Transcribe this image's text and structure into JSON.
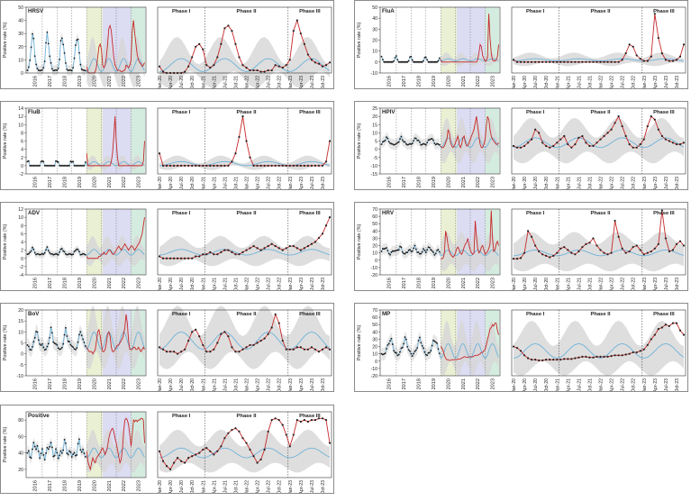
{
  "y_axis_label": "Positive rate (%)",
  "year_ticks": [
    "2016",
    "2017",
    "2018",
    "2019",
    "2020",
    "2021",
    "2022",
    "2023"
  ],
  "month_ticks": [
    "Jan-20",
    "Apr-20",
    "Jul-20",
    "Oct-20",
    "Jan-21",
    "Apr-21",
    "Jul-21",
    "Oct-21",
    "Jan-22",
    "Apr-22",
    "Jul-22",
    "Oct-22",
    "Jan-23",
    "Apr-23",
    "Jul-23",
    "Oct-23"
  ],
  "phase_labels": [
    "Phase I",
    "Phase II",
    "Phase III"
  ],
  "colors": {
    "observed_pre": "#1a1a1a",
    "observed_post": "#c62828",
    "predicted": "#6fb3d9",
    "band": "#d6d6d6",
    "phase1": "#eaf0d4",
    "phase2": "#dcdcf3",
    "phase3": "#d4ecdf"
  },
  "chart_data": [
    {
      "type": "line",
      "title": "HRSV",
      "yticks": [
        0,
        10,
        20,
        30,
        40,
        50
      ],
      "ylim": [
        0,
        50
      ],
      "pre_pattern": [
        2,
        4,
        10,
        22,
        28,
        24,
        14,
        7,
        3,
        2,
        2,
        2
      ],
      "obs_2020_2023": [
        5,
        1,
        0,
        0,
        0,
        0,
        0,
        1,
        5,
        12,
        20,
        22,
        18,
        6,
        4,
        6,
        12,
        22,
        34,
        36,
        32,
        22,
        12,
        6,
        4,
        2,
        2,
        2,
        1,
        1,
        2,
        2,
        6,
        5,
        4,
        6,
        10,
        32,
        40,
        30,
        22,
        14,
        10,
        8,
        7,
        5,
        6,
        8
      ],
      "pred_base": 6,
      "pred_amp": 5,
      "band_base": 11,
      "band_amp": 7
    },
    {
      "type": "line",
      "title": "FluA",
      "yticks": [
        -10,
        0,
        10,
        20,
        30,
        40,
        50
      ],
      "ylim": [
        -10,
        50
      ],
      "pre_pattern": [
        5,
        2,
        0,
        0,
        0,
        0,
        0,
        0,
        0,
        0,
        1,
        4
      ],
      "obs_2020_2023": [
        2,
        0,
        0,
        0,
        0,
        0,
        0,
        0,
        0,
        0,
        0,
        0,
        0,
        0,
        0,
        0,
        0,
        0,
        0,
        0,
        0,
        0,
        0,
        0,
        0,
        0,
        0,
        0,
        0,
        0,
        2,
        8,
        16,
        14,
        6,
        3,
        1,
        1,
        5,
        44,
        22,
        8,
        2,
        1,
        1,
        2,
        5,
        16
      ],
      "pred_base": 2,
      "pred_amp": 1,
      "band_base": 4,
      "band_amp": 2
    },
    {
      "type": "line",
      "title": "FluB",
      "yticks": [
        -2,
        0,
        2,
        4,
        6,
        8,
        10,
        12,
        14
      ],
      "ylim": [
        -2,
        14
      ],
      "pre_pattern": [
        1,
        1,
        0,
        0,
        0,
        0,
        0,
        0,
        0,
        0,
        0,
        1
      ],
      "obs_2020_2023": [
        3,
        0,
        0,
        0,
        0,
        0,
        0,
        0,
        0,
        0,
        0,
        0,
        0,
        0,
        0,
        0,
        0,
        0,
        0,
        0,
        1,
        3,
        7,
        12,
        6,
        2,
        0,
        0,
        0,
        0,
        0,
        0,
        0,
        0,
        0,
        0,
        0,
        0,
        0,
        0,
        0,
        0,
        0,
        0,
        0,
        0,
        1,
        6
      ],
      "pred_base": 0.5,
      "pred_amp": 0.5,
      "band_base": 1,
      "band_amp": 0.6
    },
    {
      "type": "line",
      "title": "HPIV",
      "yticks": [
        -15,
        -10,
        -5,
        0,
        5,
        10,
        15,
        20,
        25
      ],
      "ylim": [
        -15,
        25
      ],
      "pre_pattern": [
        3,
        4,
        5,
        6,
        7,
        6,
        5,
        4,
        3,
        3,
        3,
        3
      ],
      "obs_2020_2023": [
        2,
        1,
        1,
        2,
        4,
        6,
        12,
        10,
        4,
        2,
        1,
        2,
        4,
        6,
        8,
        3,
        1,
        3,
        7,
        8,
        4,
        2,
        2,
        4,
        6,
        8,
        10,
        12,
        16,
        20,
        14,
        8,
        3,
        1,
        1,
        3,
        6,
        14,
        20,
        18,
        12,
        8,
        6,
        5,
        4,
        3,
        3,
        4
      ],
      "pred_base": 4,
      "pred_amp": 3,
      "band_base": 9,
      "band_amp": 4
    },
    {
      "type": "line",
      "title": "ADV",
      "yticks": [
        -4,
        -2,
        0,
        2,
        4,
        6,
        8,
        10,
        12
      ],
      "ylim": [
        -4,
        12
      ],
      "pre_pattern": [
        1,
        1,
        1.5,
        2,
        2.5,
        2,
        1.5,
        1,
        1,
        1,
        1,
        1
      ],
      "obs_2020_2023": [
        0.5,
        0,
        0,
        0,
        0,
        0,
        0,
        0,
        0,
        0,
        0.5,
        0.5,
        1,
        1,
        1.5,
        1,
        1,
        1.5,
        2,
        2,
        1.5,
        1,
        1,
        1.5,
        2,
        2.5,
        3,
        2.5,
        2,
        2.5,
        3,
        3.5,
        3,
        2.5,
        2,
        2.5,
        3,
        3,
        2.5,
        2,
        2.5,
        3,
        3.5,
        4,
        5,
        6,
        8,
        10
      ],
      "pred_base": 1.5,
      "pred_amp": 0.7,
      "band_base": 2.5,
      "band_amp": 1
    },
    {
      "type": "line",
      "title": "HRV",
      "yticks": [
        -20,
        -10,
        0,
        10,
        20,
        30,
        40,
        50,
        60,
        70
      ],
      "ylim": [
        -20,
        70
      ],
      "pre_pattern": [
        12,
        14,
        16,
        18,
        16,
        12,
        10,
        8,
        10,
        12,
        14,
        13
      ],
      "obs_2020_2023": [
        2,
        2,
        3,
        10,
        40,
        32,
        20,
        12,
        8,
        6,
        4,
        6,
        10,
        16,
        18,
        14,
        10,
        8,
        12,
        18,
        22,
        24,
        30,
        20,
        14,
        10,
        8,
        10,
        54,
        32,
        16,
        10,
        12,
        18,
        20,
        14,
        8,
        10,
        12,
        16,
        22,
        68,
        30,
        12,
        14,
        22,
        26,
        20
      ],
      "pred_base": 10,
      "pred_amp": 4,
      "band_base": 20,
      "band_amp": 6
    },
    {
      "type": "line",
      "title": "BoV",
      "yticks": [
        -10,
        -5,
        0,
        5,
        10,
        15,
        20
      ],
      "ylim": [
        -10,
        20
      ],
      "pre_pattern": [
        4,
        3,
        2,
        2,
        3,
        5,
        8,
        11,
        9,
        6,
        5,
        4
      ],
      "obs_2020_2023": [
        3,
        2,
        1,
        1,
        1,
        0,
        1,
        2,
        6,
        10,
        11,
        8,
        4,
        1,
        1,
        2,
        5,
        9,
        10,
        8,
        3,
        1,
        1,
        2,
        3,
        4,
        4,
        5,
        6,
        7,
        9,
        12,
        18,
        14,
        6,
        2,
        2,
        2,
        3,
        3,
        2,
        2,
        3,
        2,
        1,
        2,
        3,
        2
      ],
      "pred_base": 6,
      "pred_amp": 4,
      "band_base": 9,
      "band_amp": 4
    },
    {
      "type": "line",
      "title": "MP",
      "yticks": [
        -20,
        -10,
        0,
        10,
        20,
        30,
        40,
        50,
        60,
        70
      ],
      "ylim": [
        -20,
        70
      ],
      "pre_pattern": [
        10,
        8,
        10,
        12,
        16,
        20,
        26,
        30,
        28,
        22,
        16,
        12
      ],
      "obs_2020_2023": [
        20,
        18,
        14,
        8,
        4,
        2,
        2,
        1,
        1,
        2,
        2,
        2,
        2,
        2,
        3,
        3,
        3,
        4,
        5,
        6,
        6,
        5,
        5,
        6,
        6,
        6,
        6,
        7,
        8,
        8,
        8,
        9,
        10,
        12,
        12,
        14,
        16,
        22,
        30,
        36,
        44,
        46,
        50,
        48,
        52,
        52,
        42,
        36
      ],
      "pred_base": 14,
      "pred_amp": 10,
      "band_base": 24,
      "band_amp": 10
    },
    {
      "type": "line",
      "title": "Positive",
      "yticks": [
        20,
        40,
        60,
        80
      ],
      "ylim": [
        10,
        90
      ],
      "pre_pattern": [
        40,
        38,
        36,
        38,
        42,
        48,
        52,
        48,
        44,
        40,
        38,
        40
      ],
      "obs_2020_2023": [
        42,
        30,
        24,
        20,
        28,
        34,
        30,
        28,
        34,
        36,
        38,
        40,
        44,
        46,
        42,
        38,
        42,
        48,
        58,
        64,
        68,
        70,
        66,
        58,
        52,
        44,
        36,
        28,
        32,
        44,
        66,
        80,
        82,
        80,
        74,
        62,
        48,
        62,
        80,
        78,
        80,
        78,
        80,
        80,
        82,
        82,
        80,
        52
      ],
      "pred_base": 40,
      "pred_amp": 6,
      "band_base": 18,
      "band_amp": 6
    }
  ]
}
